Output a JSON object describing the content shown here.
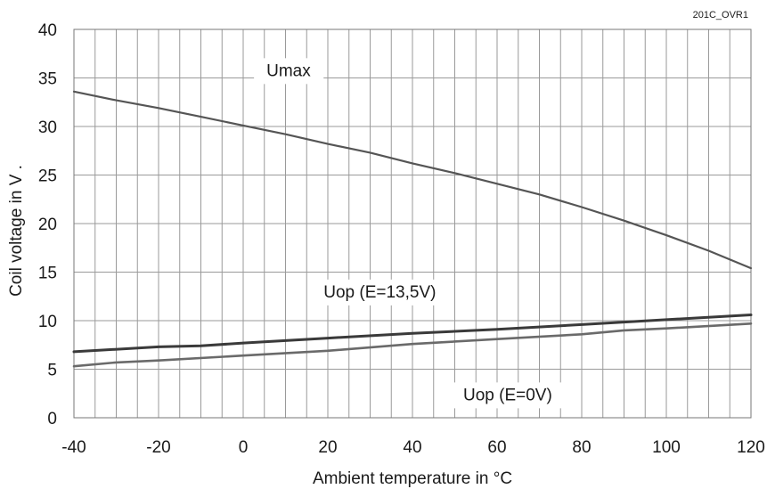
{
  "chart_data": {
    "type": "line",
    "code": "201C_OVR1",
    "xlabel": "Ambient temperature in °C",
    "ylabel": "Coil voltage in V .",
    "xlim": [
      -40,
      120
    ],
    "ylim": [
      0,
      40
    ],
    "x_ticks": [
      -40,
      -20,
      0,
      20,
      40,
      60,
      80,
      100,
      120
    ],
    "y_ticks": [
      0,
      5,
      10,
      15,
      20,
      25,
      30,
      35,
      40
    ],
    "grid": true,
    "series": [
      {
        "name": "Umax",
        "color": "#555555",
        "x": [
          -40,
          -30,
          -20,
          -10,
          0,
          10,
          20,
          30,
          40,
          50,
          60,
          70,
          80,
          90,
          100,
          110,
          120
        ],
        "y": [
          33.6,
          32.7,
          31.9,
          31.0,
          30.1,
          29.2,
          28.2,
          27.3,
          26.2,
          25.2,
          24.1,
          23.0,
          21.7,
          20.3,
          18.8,
          17.2,
          15.4
        ]
      },
      {
        "name": "Uop (E=13,5V)",
        "color": "#3a3a3a",
        "x": [
          -40,
          -20,
          -10,
          0,
          20,
          40,
          60,
          80,
          100,
          120
        ],
        "y": [
          6.8,
          7.3,
          7.4,
          7.7,
          8.2,
          8.7,
          9.1,
          9.6,
          10.1,
          10.6
        ]
      },
      {
        "name": "Uop (E=0V)",
        "color": "#6a6a6a",
        "x": [
          -40,
          -30,
          -20,
          0,
          20,
          40,
          60,
          80,
          90,
          100,
          120
        ],
        "y": [
          5.3,
          5.7,
          5.9,
          6.4,
          6.9,
          7.6,
          8.1,
          8.6,
          9.0,
          9.2,
          9.7
        ]
      }
    ]
  }
}
